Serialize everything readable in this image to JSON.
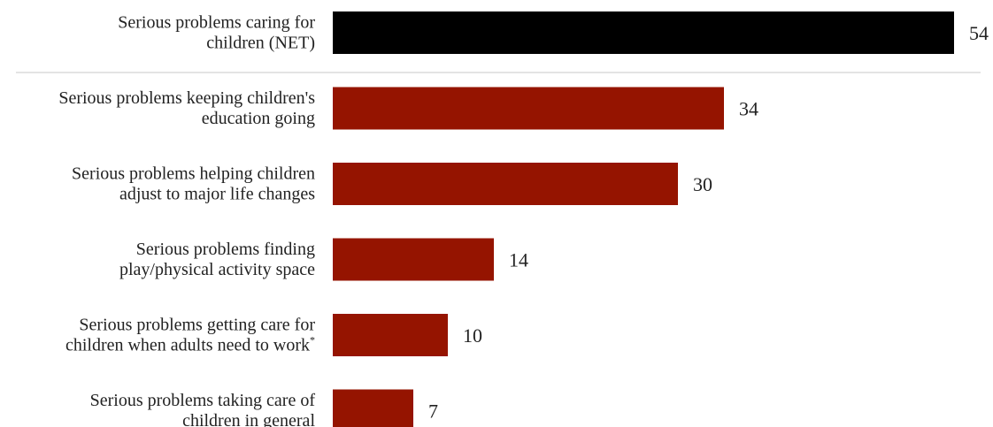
{
  "colors": {
    "net_bar": "#000000",
    "bar": "#951400",
    "divider": "#c8c8c8",
    "text": "#222222"
  },
  "chart_data": {
    "type": "bar",
    "orientation": "horizontal",
    "categories": [
      [
        "Serious problems caring for",
        "children (NET)"
      ],
      [
        "Serious problems keeping children's",
        "education going"
      ],
      [
        "Serious problems helping children",
        "adjust to major life changes"
      ],
      [
        "Serious problems finding",
        "play/physical activity space"
      ],
      [
        "Serious problems getting care for",
        "children when adults need to work*"
      ],
      [
        "Serious problems taking care of",
        "children in general"
      ]
    ],
    "values": [
      54,
      34,
      30,
      14,
      10,
      7
    ],
    "value_labels": [
      "54",
      "34",
      "30",
      "14",
      "10",
      "7"
    ],
    "highlight_index": 0,
    "divider_after_index": 0,
    "xlim": [
      0,
      54
    ],
    "title": "",
    "xlabel": "",
    "ylabel": "",
    "grid": false,
    "legend": "none"
  }
}
